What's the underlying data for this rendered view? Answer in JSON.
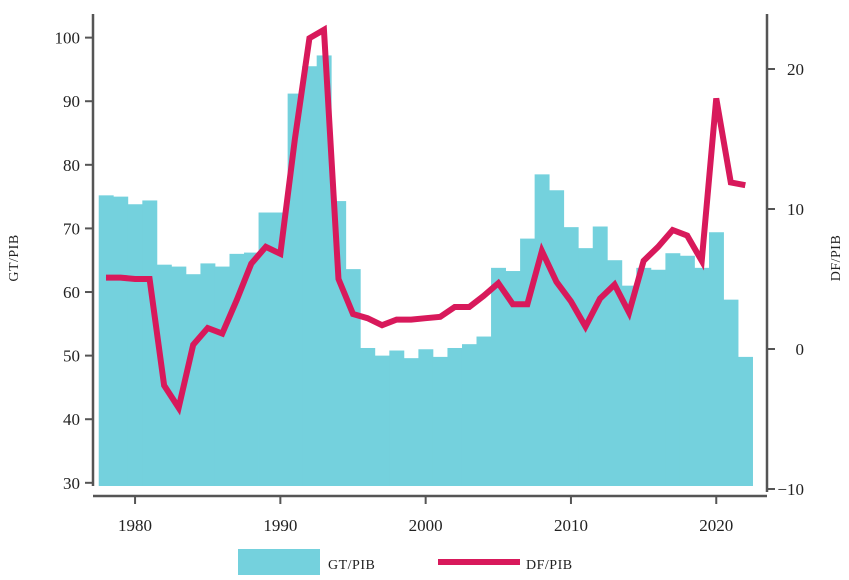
{
  "chart_data": {
    "type": "bar+line",
    "title": "",
    "x": [
      1978,
      1979,
      1980,
      1981,
      1982,
      1983,
      1984,
      1985,
      1986,
      1987,
      1988,
      1989,
      1990,
      1991,
      1992,
      1993,
      1994,
      1995,
      1996,
      1997,
      1998,
      1999,
      2000,
      2001,
      2002,
      2003,
      2004,
      2005,
      2006,
      2007,
      2008,
      2009,
      2010,
      2011,
      2012,
      2013,
      2014,
      2015,
      2016,
      2017,
      2018,
      2019,
      2020,
      2021,
      2022
    ],
    "series": [
      {
        "name": "GT/PIB",
        "type": "bar",
        "axis": "left",
        "color": "#74d1dd",
        "values": [
          75.2,
          75.0,
          73.8,
          74.4,
          64.3,
          64.0,
          62.8,
          64.5,
          64.0,
          66.0,
          66.2,
          72.5,
          72.5,
          91.2,
          95.5,
          97.2,
          74.3,
          63.6,
          51.2,
          50.0,
          50.8,
          49.6,
          51.0,
          49.8,
          51.2,
          51.8,
          53.0,
          63.8,
          63.3,
          68.4,
          78.5,
          76.0,
          70.2,
          66.9,
          70.3,
          65.0,
          61.0,
          63.8,
          63.5,
          66.1,
          65.7,
          63.8,
          69.4,
          58.8,
          49.8
        ]
      },
      {
        "name": "DF/PIB",
        "type": "line",
        "axis": "right",
        "color": "#d8195b",
        "values": [
          5.1,
          5.1,
          5.0,
          5.0,
          -2.6,
          -4.2,
          0.3,
          1.5,
          1.1,
          3.5,
          6.1,
          7.3,
          6.8,
          15.0,
          22.2,
          22.8,
          5.0,
          2.5,
          2.2,
          1.7,
          2.1,
          2.1,
          2.2,
          2.3,
          3.0,
          3.0,
          3.8,
          4.7,
          3.2,
          3.2,
          7.0,
          4.8,
          3.4,
          1.6,
          3.6,
          4.6,
          2.6,
          6.3,
          7.3,
          8.5,
          8.1,
          6.3,
          17.9,
          11.9,
          11.7
        ]
      }
    ],
    "axes": {
      "x": {
        "min": 1977,
        "max": 2023,
        "ticks": [
          1980,
          1990,
          2000,
          2010,
          2020
        ],
        "tick_labels": [
          "1980",
          "1990",
          "2000",
          "2010",
          "2020"
        ]
      },
      "y_left": {
        "label": "GT/PIB",
        "min": 29.5,
        "max": 104,
        "ticks": [
          30,
          40,
          50,
          60,
          70,
          80,
          90,
          100
        ],
        "tick_labels": [
          "30",
          "40",
          "50",
          "60",
          "70",
          "80",
          "90",
          "100"
        ]
      },
      "y_right": {
        "label": "DF/PIB",
        "min": -10,
        "max": 24,
        "ticks": [
          -10,
          0,
          10,
          20
        ],
        "tick_labels": [
          "−10",
          "0",
          "10",
          "20"
        ]
      }
    },
    "grid": false,
    "legend": {
      "placement": "bottom-center",
      "entries": [
        {
          "label": "GT/PIB",
          "swatch": "box",
          "color": "#74d1dd"
        },
        {
          "label": "DF/PIB",
          "swatch": "line",
          "color": "#d8195b"
        }
      ]
    }
  }
}
